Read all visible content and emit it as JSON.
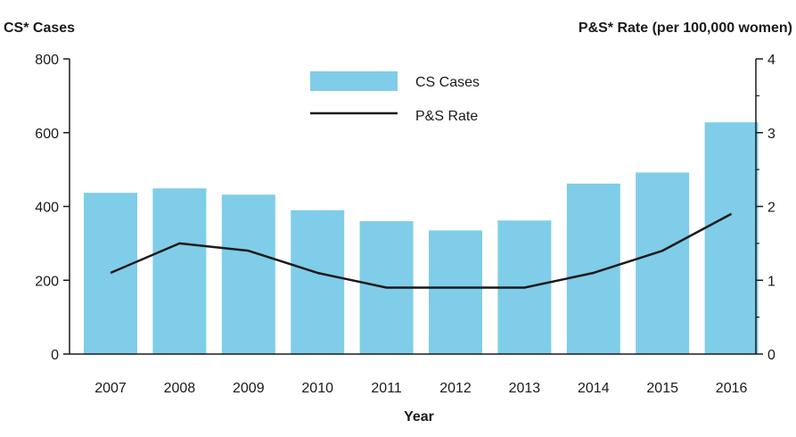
{
  "chart_data": {
    "type": "bar",
    "categories": [
      "2007",
      "2008",
      "2009",
      "2010",
      "2011",
      "2012",
      "2013",
      "2014",
      "2015",
      "2016"
    ],
    "series": [
      {
        "name": "CS Cases",
        "type": "bar",
        "axis": "left",
        "color": "#7fcde8",
        "values": [
          437,
          449,
          432,
          390,
          360,
          335,
          362,
          462,
          492,
          628
        ]
      },
      {
        "name": "P&S Rate",
        "type": "line",
        "axis": "right",
        "color": "#1a1a1a",
        "values": [
          1.1,
          1.5,
          1.4,
          1.1,
          0.9,
          0.9,
          0.9,
          1.1,
          1.4,
          1.9
        ]
      }
    ],
    "left_axis": {
      "title": "CS* Cases",
      "ylim": [
        0,
        800
      ],
      "ticks": [
        "0",
        "200",
        "400",
        "600",
        "800"
      ]
    },
    "right_axis": {
      "title": "P&S* Rate (per 100,000 women)",
      "ylim": [
        0,
        4
      ],
      "ticks": [
        "0",
        "1",
        "2",
        "3",
        "4"
      ]
    },
    "xlabel": "Year",
    "legend_position": "top-center",
    "grid": false
  }
}
